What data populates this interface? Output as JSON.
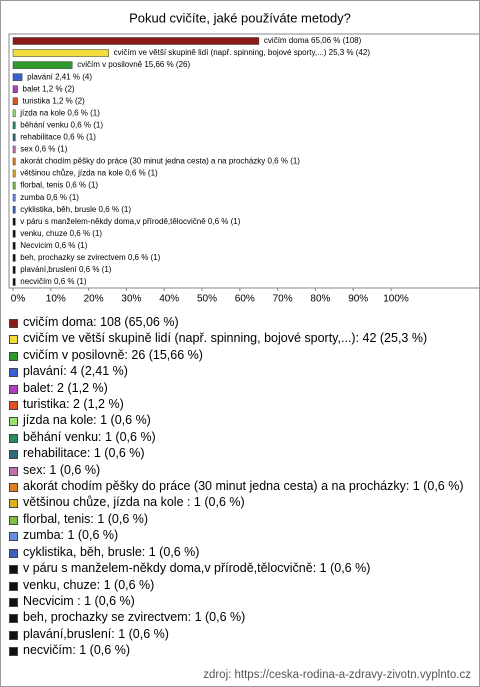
{
  "chart_data": {
    "type": "bar",
    "orientation": "horizontal",
    "title": "Pokud cvičíte, jaké používáte metody?",
    "categories": [
      "cvičím doma",
      "cvičím ve větší skupině lidí (např. spinning, bojové sporty,...)",
      "cvičím v posilovně",
      "plavání",
      "balet",
      "turistika",
      "jízda na kole",
      "běhání venku",
      "rehabilitace",
      "sex",
      "akorát chodím pěšky do práce (30 minut jedna cesta) a na procházky",
      "většinou chůze, jízda na kole ",
      "florbal, tenis",
      "zumba",
      "cyklistika, běh, brusle",
      "v páru s manželem-někdy doma,v přírodě,tělocvičně",
      "venku, chuze",
      "Necvicim ",
      "beh, prochazky se zvirectvem",
      "plavání,bruslení",
      "necvičím"
    ],
    "values": [
      65.06,
      25.3,
      15.66,
      2.41,
      1.2,
      1.2,
      0.6,
      0.6,
      0.6,
      0.6,
      0.6,
      0.6,
      0.6,
      0.6,
      0.6,
      0.6,
      0.6,
      0.6,
      0.6,
      0.6,
      0.6
    ],
    "value_labels": [
      "cvičím doma 65,06 % (108)",
      "cvičím ve větší skupině lidí (např. spinning, bojové sporty,...) 25,3 % (42)",
      "cvičím v posilovně 15,66 % (26)",
      "plavání 2,41 % (4)",
      "balet 1,2 % (2)",
      "turistika 1,2 % (2)",
      "jízda na kole 0,6 % (1)",
      "běhání venku 0,6 % (1)",
      "rehabilitace 0,6 % (1)",
      "sex 0,6 % (1)",
      "akorát chodím pěšky do práce (30 minut jedna cesta) a na procházky 0,6 % (1)",
      "většinou chůze, jízda na kole  0,6 % (1)",
      "florbal, tenis 0,6 % (1)",
      "zumba 0,6 % (1)",
      "cyklistika, běh, brusle 0,6 % (1)",
      "v páru s manželem-někdy doma,v přírodě,tělocvičně 0,6 % (1)",
      "venku, chuze 0,6 % (1)",
      "Necvicim  0,6 % (1)",
      "beh, prochazky se zvirectvem 0,6 % (1)",
      "plavání,bruslení 0,6 % (1)",
      "necvičím 0,6 % (1)"
    ],
    "legend_labels": [
      "cvičím doma: 108 (65,06 %)",
      "cvičím ve větší skupině lidí (např. spinning, bojové sporty,...): 42 (25,3 %)",
      "cvičím v posilovně: 26 (15,66 %)",
      "plavání: 4 (2,41 %)",
      "balet: 2 (1,2 %)",
      "turistika: 2 (1,2 %)",
      "jízda na kole: 1 (0,6 %)",
      "běhání venku: 1 (0,6 %)",
      "rehabilitace: 1 (0,6 %)",
      "sex: 1 (0,6 %)",
      "akorát chodím pěšky do práce (30 minut jedna cesta) a na procházky: 1 (0,6 %)",
      "většinou chůze, jízda na kole : 1 (0,6 %)",
      "florbal, tenis: 1 (0,6 %)",
      "zumba: 1 (0,6 %)",
      "cyklistika, běh, brusle: 1 (0,6 %)",
      "v páru s manželem-někdy doma,v přírodě,tělocvičně: 1 (0,6 %)",
      "venku, chuze: 1 (0,6 %)",
      "Necvicim : 1 (0,6 %)",
      "beh, prochazky se zvirectvem: 1 (0,6 %)",
      "plavání,bruslení: 1 (0,6 %)",
      "necvičím: 1 (0,6 %)"
    ],
    "colors": [
      "#8b1a1a",
      "#f2dc3c",
      "#2e9a2e",
      "#3a5fd0",
      "#b040c0",
      "#e05020",
      "#98e070",
      "#2a8a5a",
      "#2a6a7a",
      "#c070b0",
      "#e08020",
      "#e0b020",
      "#80c040",
      "#6a8ae8",
      "#4060c0",
      "#111111",
      "#111111",
      "#111111",
      "#111111",
      "#111111",
      "#111111"
    ],
    "xlim": [
      0,
      100
    ],
    "xticks": [
      {
        "value": 0,
        "label": "0%"
      },
      {
        "value": 10,
        "label": "10%"
      },
      {
        "value": 20,
        "label": "20%"
      },
      {
        "value": 30,
        "label": "30%"
      },
      {
        "value": 40,
        "label": "40%"
      },
      {
        "value": 50,
        "label": "50%"
      },
      {
        "value": 60,
        "label": "60%"
      },
      {
        "value": 70,
        "label": "70%"
      },
      {
        "value": 80,
        "label": "80%"
      },
      {
        "value": 90,
        "label": "90%"
      },
      {
        "value": 100,
        "label": "100%"
      }
    ],
    "source": "zdroj: https://ceska-rodina-a-zdravy-zivotn.vyplnto.cz"
  }
}
